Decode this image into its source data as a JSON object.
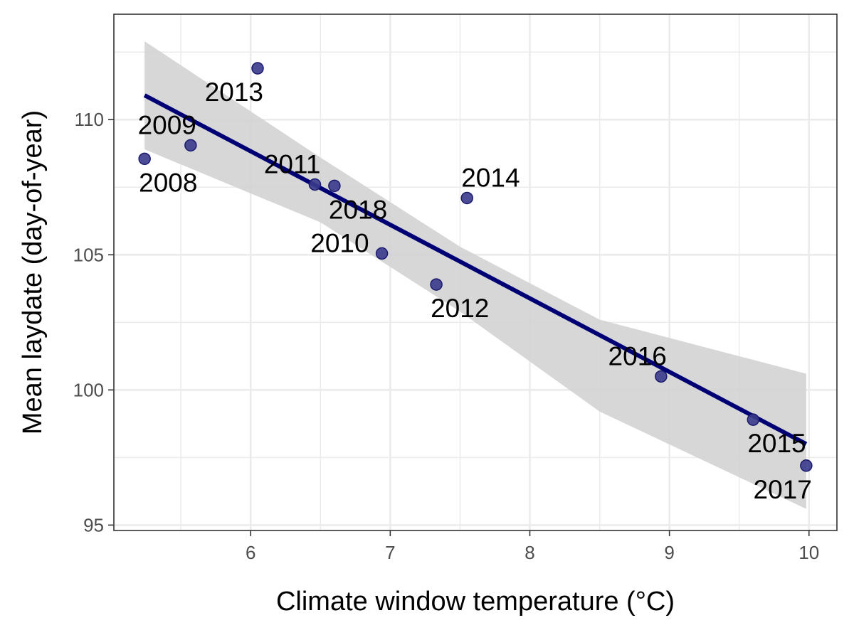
{
  "chart_data": {
    "type": "scatter",
    "title": "",
    "xlabel": "Climate window temperature (°C)",
    "ylabel": "Mean laydate (day-of-year)",
    "xlim": [
      5.02,
      10.2
    ],
    "ylim": [
      94.8,
      113.9
    ],
    "xticks": [
      6,
      7,
      8,
      9,
      10
    ],
    "yticks": [
      95,
      100,
      105,
      110
    ],
    "grid": true,
    "points": [
      {
        "label": "2008",
        "x": 5.24,
        "y": 108.55,
        "label_pos": "below-right"
      },
      {
        "label": "2009",
        "x": 5.57,
        "y": 109.05,
        "label_pos": "above-left"
      },
      {
        "label": "2010",
        "x": 6.94,
        "y": 105.05,
        "label_pos": "left"
      },
      {
        "label": "2011",
        "x": 6.46,
        "y": 107.6,
        "label_pos": "above-left"
      },
      {
        "label": "2012",
        "x": 7.33,
        "y": 103.9,
        "label_pos": "below-right"
      },
      {
        "label": "2013",
        "x": 6.05,
        "y": 111.9,
        "label_pos": "below-left"
      },
      {
        "label": "2014",
        "x": 7.55,
        "y": 107.1,
        "label_pos": "above-right"
      },
      {
        "label": "2015",
        "x": 9.6,
        "y": 98.9,
        "label_pos": "below-right"
      },
      {
        "label": "2016",
        "x": 8.94,
        "y": 100.5,
        "label_pos": "above-left"
      },
      {
        "label": "2017",
        "x": 9.98,
        "y": 97.2,
        "label_pos": "below-left"
      },
      {
        "label": "2018",
        "x": 6.6,
        "y": 107.55,
        "label_pos": "below-right"
      }
    ],
    "regression": {
      "x_start": 5.24,
      "y_start": 110.9,
      "x_end": 9.98,
      "y_end": 98.0
    },
    "confidence_band": {
      "x": [
        5.24,
        6.5,
        7.5,
        8.5,
        9.98
      ],
      "upper": [
        112.9,
        108.6,
        105.3,
        102.6,
        100.6
      ],
      "lower": [
        108.9,
        106.2,
        102.9,
        99.2,
        95.6
      ]
    },
    "colors": {
      "point_fill": "#3a3a8c",
      "point_stroke": "#1a1a6e",
      "line": "#000075",
      "band": "#d3d3d3",
      "grid": "#ebebeb",
      "panel_border": "#333333"
    }
  }
}
